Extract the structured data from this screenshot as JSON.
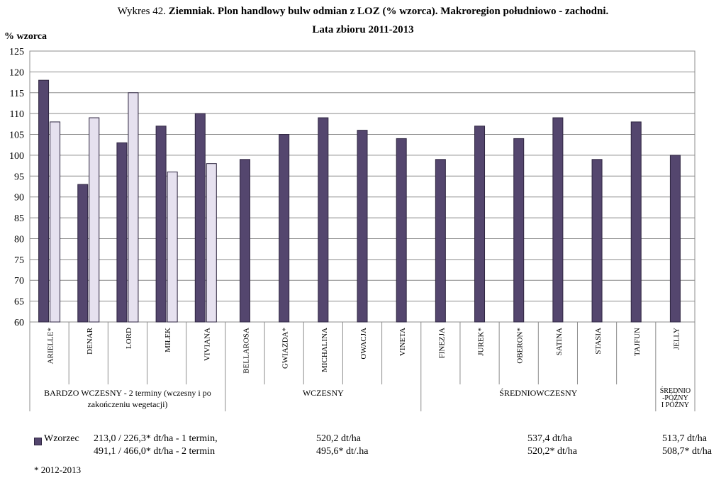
{
  "title_line1_prefix": "Wykres 42.",
  "title_line1_bold": "Ziemniak. Plon handlowy bulw odmian z LOZ (% wzorca). Makroregion południowo - zachodni.",
  "title_line2": "Lata zbioru 2011-2013",
  "chart_data": {
    "type": "bar",
    "ylabel": "% wzorca",
    "ylim": [
      60,
      125
    ],
    "yticks": [
      60,
      65,
      70,
      75,
      80,
      85,
      90,
      95,
      100,
      105,
      110,
      115,
      120,
      125
    ],
    "grid": true,
    "categories": [
      "ARIELLE*",
      "DENAR",
      "LORD",
      "MIŁEK",
      "VIVIANA",
      "BELLAROSA",
      "GWIAZDA*",
      "MICHALINA",
      "OWACJA",
      "VINETA",
      "FINEZJA",
      "JUREK*",
      "OBERON*",
      "SATINA",
      "STASIA",
      "TAJFUN",
      "JELLY"
    ],
    "series": [
      {
        "values": [
          118,
          93,
          103,
          107,
          110,
          99,
          105,
          109,
          106,
          104,
          99,
          107,
          104,
          109,
          99,
          108,
          100
        ],
        "color": "#54466e"
      },
      {
        "values": [
          108,
          109,
          115,
          96,
          98,
          null,
          null,
          null,
          null,
          null,
          null,
          null,
          null,
          null,
          null,
          null,
          null
        ],
        "color": "#e6e1ef"
      }
    ],
    "groups": [
      {
        "label_lines": [
          "BARDZO WCZESNY - 2 terminy (wczesny i po",
          "zakończeniu wegetacji)"
        ],
        "span": [
          0,
          4
        ]
      },
      {
        "label_lines": [
          "WCZESNY"
        ],
        "span": [
          5,
          9
        ]
      },
      {
        "label_lines": [
          "ŚREDNIOWCZESNY"
        ],
        "span": [
          10,
          15
        ]
      },
      {
        "label_lines": [
          "ŚREDNIO",
          "-PÓŹNY",
          "I PÓŹNY"
        ],
        "span": [
          16,
          16
        ]
      }
    ]
  },
  "legend": {
    "name": "Wzorzec",
    "group1_line1": "213,0 / 226,3* dt/ha  - 1 termin,",
    "group1_line2": "491,1 / 466,0* dt/ha  - 2 termin",
    "group2_line1": "520,2 dt/ha",
    "group2_line2": "495,6* dt/.ha",
    "group3_line1": "537,4 dt/ha",
    "group3_line2": "520,2* dt/ha",
    "group4_line1": "513,7 dt/ha",
    "group4_line2": "508,7* dt/ha"
  },
  "footnote": "*  2012-2013"
}
